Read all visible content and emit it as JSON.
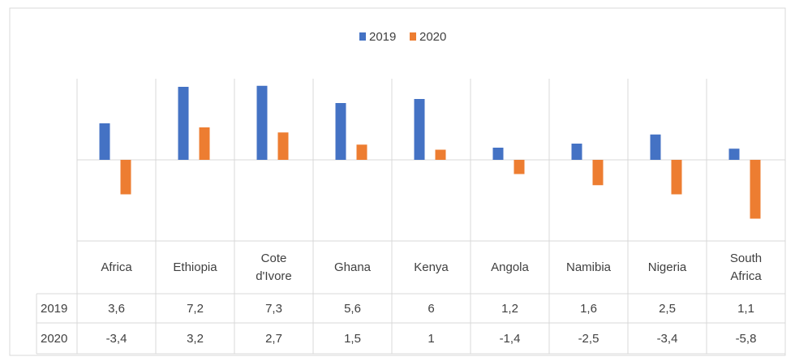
{
  "chart_data": {
    "type": "bar",
    "categories": [
      "Africa",
      "Ethiopia",
      "Cote d'Ivore",
      "Ghana",
      "Kenya",
      "Angola",
      "Namibia",
      "Nigeria",
      "South Africa"
    ],
    "series": [
      {
        "name": "2019",
        "color": "#4472c4",
        "values": [
          3.6,
          7.2,
          7.3,
          5.6,
          6,
          1.2,
          1.6,
          2.5,
          1.1
        ],
        "value_labels": [
          "3,6",
          "7,2",
          "7,3",
          "5,6",
          "6",
          "1,2",
          "1,6",
          "2,5",
          "1,1"
        ]
      },
      {
        "name": "2020",
        "color": "#ed7d31",
        "values": [
          -3.4,
          3.2,
          2.7,
          1.5,
          1,
          -1.4,
          -2.5,
          -3.4,
          -5.8
        ],
        "value_labels": [
          "-3,4",
          "3,2",
          "2,7",
          "1,5",
          "1",
          "-1,4",
          "-2,5",
          "-3,4",
          "-5,8"
        ]
      }
    ],
    "ylim": [
      -8,
      8
    ],
    "legend": "top"
  }
}
